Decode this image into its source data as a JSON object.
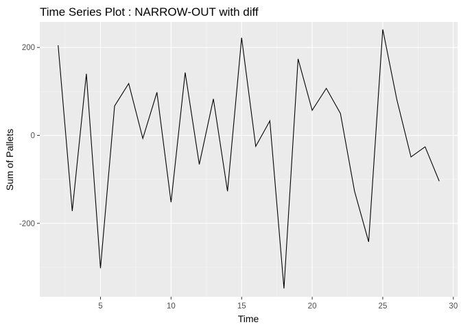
{
  "chart_data": {
    "type": "line",
    "title": "Time Series Plot : NARROW-OUT with diff",
    "xlabel": "Time",
    "ylabel": "Sum of Pallets",
    "xlim": [
      0.7,
      30.3
    ],
    "ylim": [
      -367,
      258
    ],
    "x_ticks": [
      5,
      10,
      15,
      20,
      25,
      30
    ],
    "y_ticks": [
      -200,
      0,
      200
    ],
    "grid": true,
    "x": [
      2,
      3,
      4,
      5,
      6,
      7,
      8,
      9,
      10,
      11,
      12,
      13,
      14,
      15,
      16,
      17,
      18,
      19,
      20,
      21,
      22,
      23,
      24,
      25,
      26,
      27,
      28,
      29
    ],
    "y": [
      205,
      -172,
      140,
      -302,
      67,
      118,
      -7,
      98,
      -152,
      143,
      -66,
      83,
      -127,
      222,
      -25,
      33,
      -348,
      174,
      57,
      107,
      50,
      -127,
      -242,
      241,
      81,
      -49,
      -26,
      -104
    ],
    "colors": {
      "panel": "#ebebeb",
      "grid_major": "#ffffff",
      "grid_minor": "#f5f5f5",
      "line": "#000000",
      "tick_text": "#4d4d4d",
      "tick_mark": "#333333"
    }
  }
}
